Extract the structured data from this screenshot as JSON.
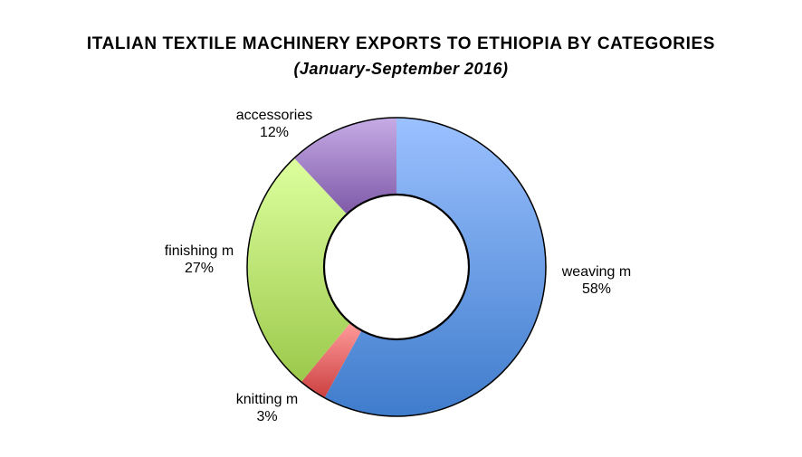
{
  "title": "ITALIAN TEXTILE MACHINERY EXPORTS TO ETHIOPIA BY CATEGORIES",
  "subtitle": "(January-September 2016)",
  "chart_data": {
    "type": "pie",
    "subtype": "donut",
    "title": "ITALIAN TEXTILE MACHINERY EXPORTS TO ETHIOPIA BY CATEGORIES",
    "subtitle": "(January-September 2016)",
    "categories": [
      "weaving m",
      "knitting m",
      "finishing m",
      "accessories"
    ],
    "values": [
      58,
      3,
      27,
      12
    ],
    "unit": "%",
    "start_angle_deg": 0,
    "direction": "clockwise",
    "legend": "none (data labels)",
    "colors": {
      "weaving m": [
        "#9bc1ff",
        "#3f7ccc"
      ],
      "knitting m": [
        "#ff9b9b",
        "#cc4040"
      ],
      "finishing m": [
        "#ddff9e",
        "#9bc94b"
      ],
      "accessories": [
        "#c6abe6",
        "#7f5aa8"
      ]
    }
  },
  "labels": [
    {
      "name": "weaving m",
      "pct": "58%"
    },
    {
      "name": "knitting m",
      "pct": "3%"
    },
    {
      "name": "finishing m",
      "pct": "27%"
    },
    {
      "name": "accessories",
      "pct": "12%"
    }
  ]
}
